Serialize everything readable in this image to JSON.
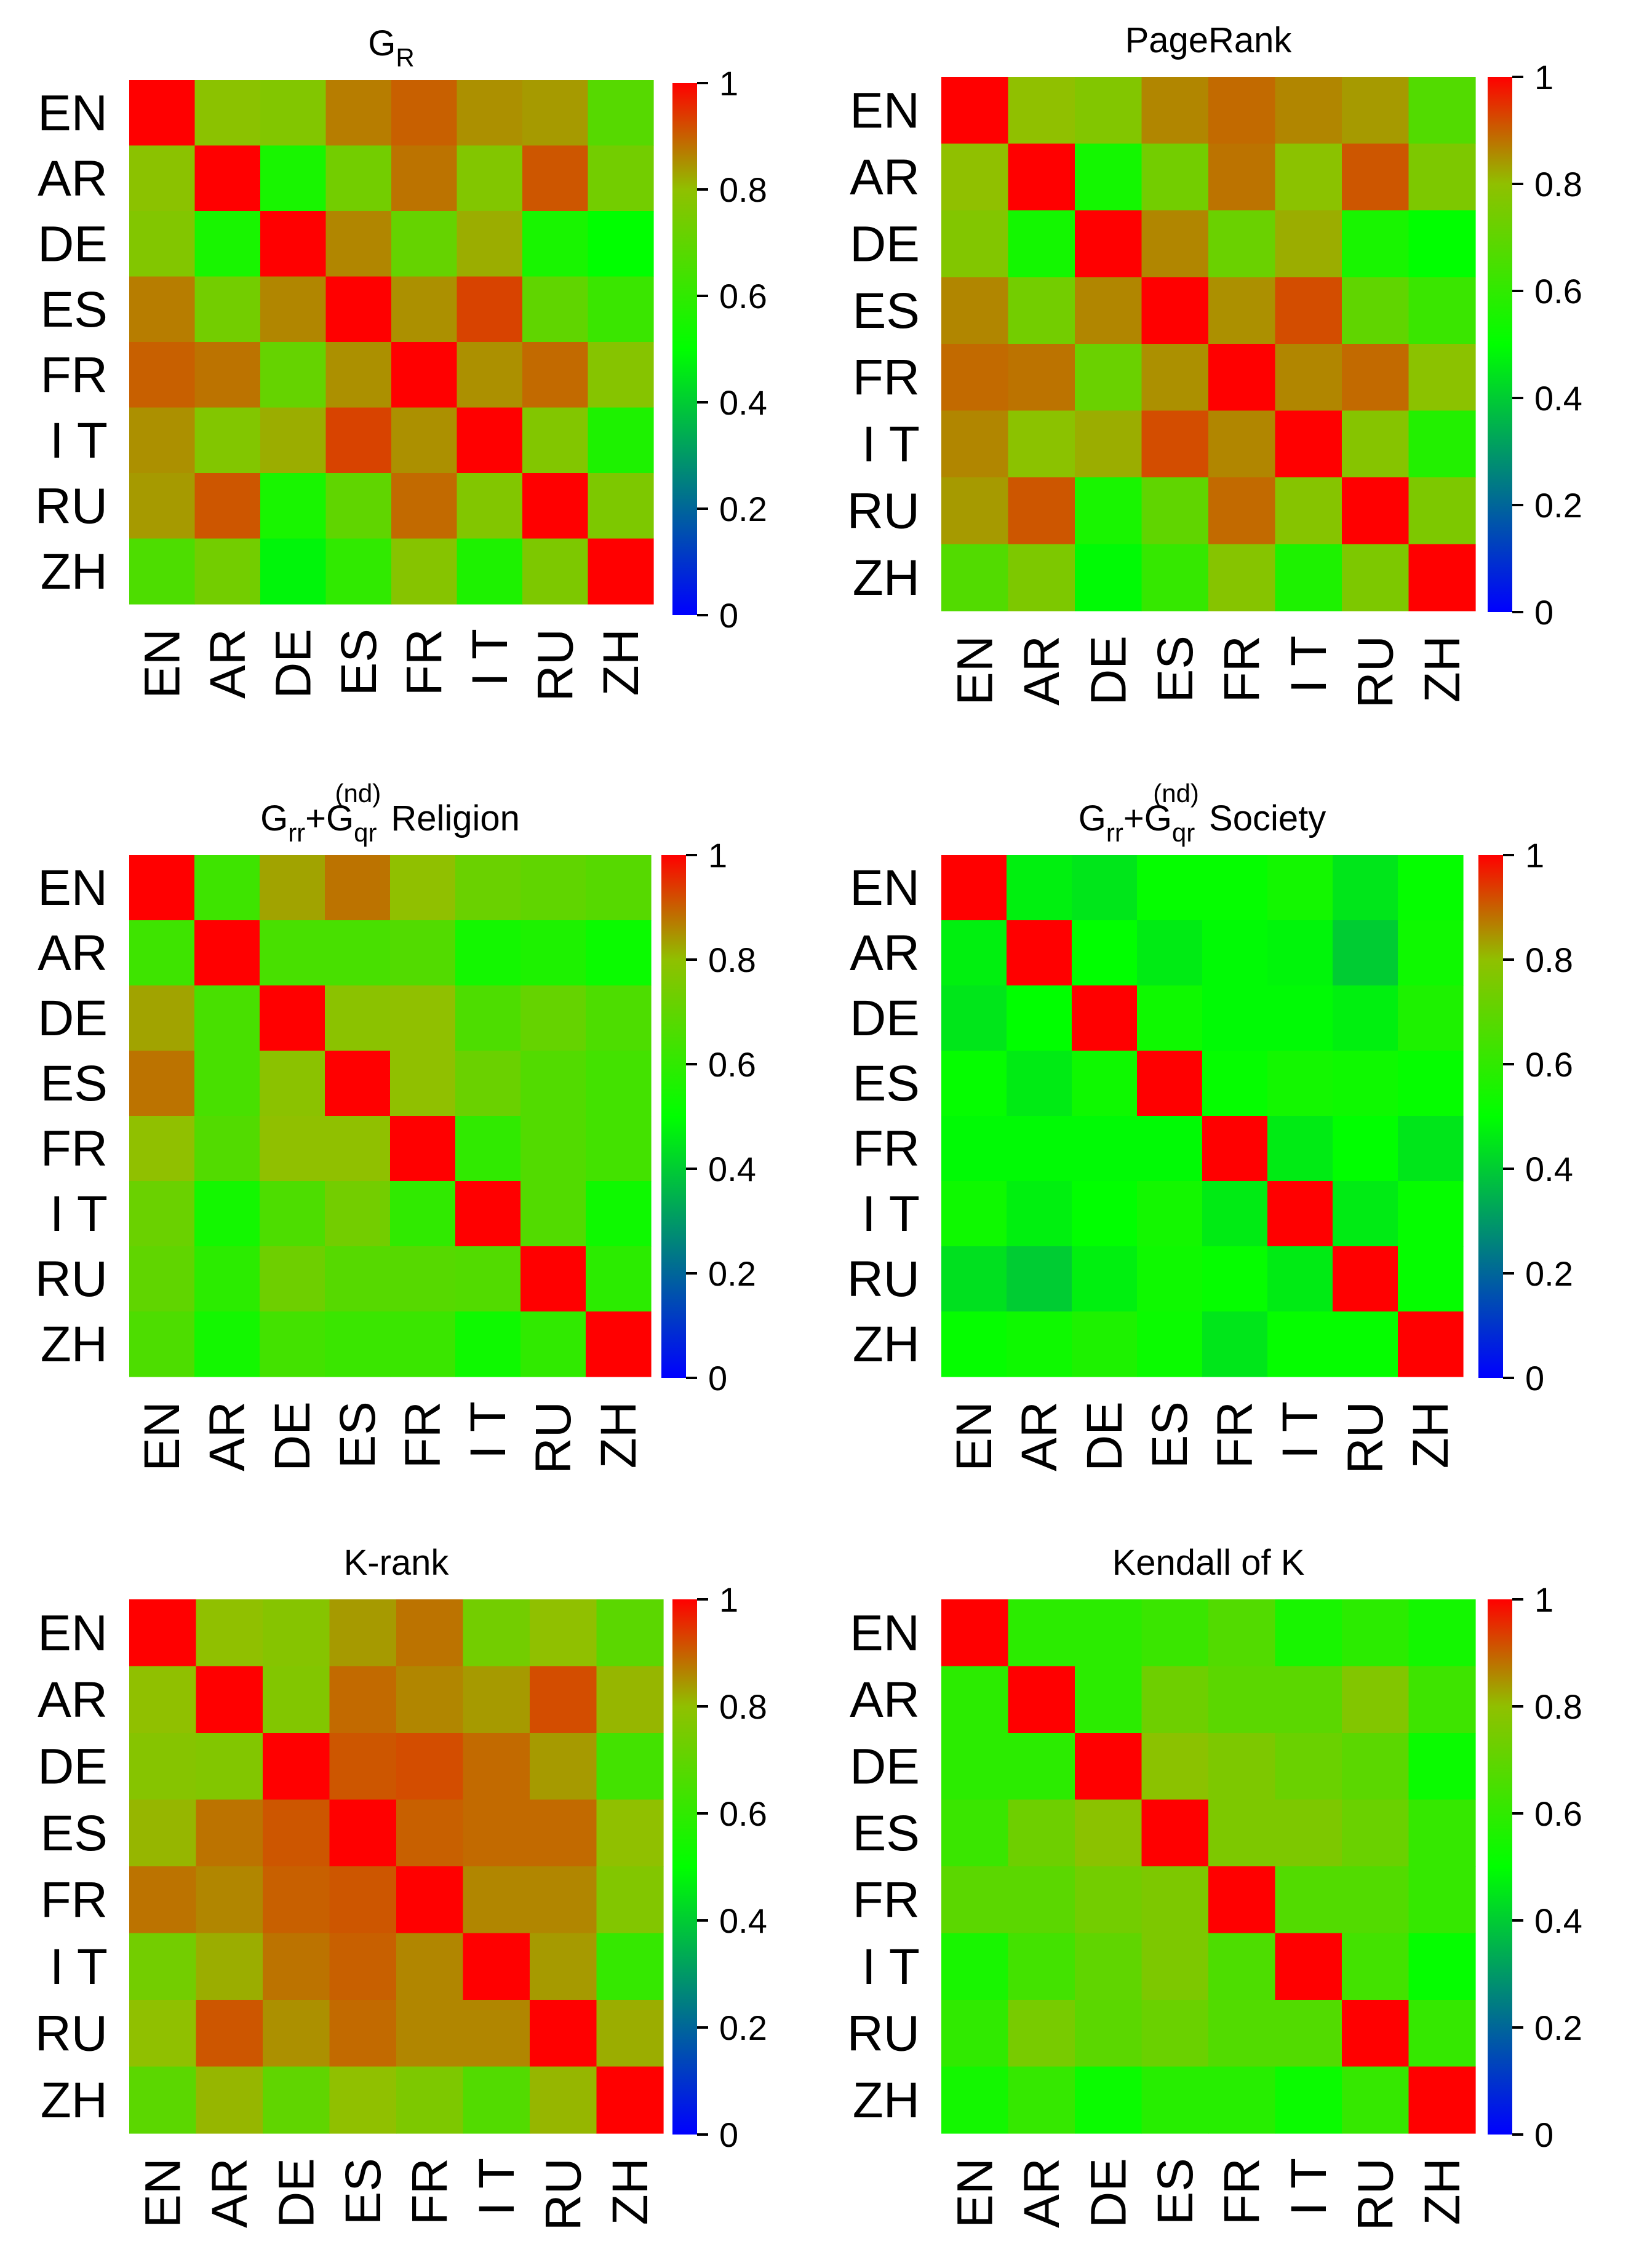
{
  "colorscale": {
    "low": "#0000ff",
    "mid_low": "#00ff00",
    "mid_high": "#90c000",
    "high": "#ff0000"
  },
  "chart_data": [
    {
      "type": "heatmap",
      "title_parts": [
        {
          "t": "G",
          "s": ""
        },
        {
          "t": "R",
          "s": "sub"
        }
      ],
      "labels": [
        "EN",
        "AR",
        "DE",
        "ES",
        "FR",
        "I T",
        "RU",
        "ZH"
      ],
      "colorbar": {
        "ticks": [
          "0",
          "0.2",
          "0.4",
          "0.6",
          "0.8",
          "1"
        ],
        "range": [
          0,
          1
        ]
      },
      "values": [
        [
          1.0,
          0.79,
          0.77,
          0.87,
          0.9,
          0.85,
          0.84,
          0.68
        ],
        [
          0.79,
          1.0,
          0.55,
          0.74,
          0.88,
          0.77,
          0.91,
          0.74
        ],
        [
          0.77,
          0.55,
          1.0,
          0.86,
          0.71,
          0.82,
          0.55,
          0.5
        ],
        [
          0.87,
          0.74,
          0.86,
          1.0,
          0.85,
          0.93,
          0.7,
          0.62
        ],
        [
          0.9,
          0.88,
          0.71,
          0.85,
          1.0,
          0.85,
          0.89,
          0.78
        ],
        [
          0.85,
          0.77,
          0.82,
          0.93,
          0.85,
          1.0,
          0.77,
          0.56
        ],
        [
          0.84,
          0.91,
          0.55,
          0.7,
          0.89,
          0.77,
          1.0,
          0.76
        ],
        [
          0.66,
          0.74,
          0.48,
          0.6,
          0.78,
          0.56,
          0.76,
          1.0
        ]
      ]
    },
    {
      "type": "heatmap",
      "title_parts": [
        {
          "t": "PageRank",
          "s": ""
        }
      ],
      "labels": [
        "EN",
        "AR",
        "DE",
        "ES",
        "FR",
        "I T",
        "RU",
        "ZH"
      ],
      "colorbar": {
        "ticks": [
          "0",
          "0.2",
          "0.4",
          "0.6",
          "0.8",
          "1"
        ],
        "range": [
          0,
          1
        ]
      },
      "values": [
        [
          1.0,
          0.8,
          0.77,
          0.86,
          0.89,
          0.86,
          0.84,
          0.67
        ],
        [
          0.8,
          1.0,
          0.54,
          0.74,
          0.88,
          0.79,
          0.91,
          0.76
        ],
        [
          0.77,
          0.54,
          1.0,
          0.86,
          0.72,
          0.82,
          0.55,
          0.5
        ],
        [
          0.86,
          0.74,
          0.86,
          1.0,
          0.85,
          0.92,
          0.7,
          0.62
        ],
        [
          0.89,
          0.88,
          0.72,
          0.85,
          1.0,
          0.86,
          0.89,
          0.79
        ],
        [
          0.86,
          0.79,
          0.82,
          0.92,
          0.86,
          1.0,
          0.78,
          0.57
        ],
        [
          0.84,
          0.91,
          0.55,
          0.7,
          0.89,
          0.78,
          1.0,
          0.76
        ],
        [
          0.67,
          0.76,
          0.49,
          0.61,
          0.78,
          0.56,
          0.76,
          1.0
        ]
      ]
    },
    {
      "type": "heatmap",
      "title_parts": [
        {
          "t": "G",
          "s": ""
        },
        {
          "t": "rr",
          "s": "sub"
        },
        {
          "t": "+G",
          "s": ""
        },
        {
          "t": "qr",
          "s": "sub"
        },
        {
          "t": "(nd)",
          "s": "sup"
        },
        {
          "t": "  Religion",
          "s": ""
        }
      ],
      "labels": [
        "EN",
        "AR",
        "DE",
        "ES",
        "FR",
        "I T",
        "RU",
        "ZH"
      ],
      "colorbar": {
        "ticks": [
          "0",
          "0.2",
          "0.4",
          "0.6",
          "0.8",
          "1"
        ],
        "range": [
          0,
          1
        ]
      },
      "values": [
        [
          1.0,
          0.63,
          0.83,
          0.88,
          0.8,
          0.72,
          0.7,
          0.68
        ],
        [
          0.63,
          1.0,
          0.65,
          0.65,
          0.67,
          0.54,
          0.56,
          0.52
        ],
        [
          0.83,
          0.65,
          1.0,
          0.79,
          0.8,
          0.66,
          0.71,
          0.66
        ],
        [
          0.88,
          0.65,
          0.79,
          1.0,
          0.8,
          0.72,
          0.67,
          0.64
        ],
        [
          0.8,
          0.67,
          0.8,
          0.8,
          1.0,
          0.6,
          0.67,
          0.64
        ],
        [
          0.72,
          0.54,
          0.66,
          0.74,
          0.6,
          1.0,
          0.67,
          0.53
        ],
        [
          0.7,
          0.59,
          0.73,
          0.68,
          0.68,
          0.67,
          1.0,
          0.59
        ],
        [
          0.66,
          0.54,
          0.64,
          0.62,
          0.62,
          0.53,
          0.6,
          1.0
        ]
      ]
    },
    {
      "type": "heatmap",
      "title_parts": [
        {
          "t": "G",
          "s": ""
        },
        {
          "t": "rr",
          "s": "sub"
        },
        {
          "t": "+G",
          "s": ""
        },
        {
          "t": "qr",
          "s": "sub"
        },
        {
          "t": "(nd)",
          "s": "sup"
        },
        {
          "t": "  Society",
          "s": ""
        }
      ],
      "labels": [
        "EN",
        "AR",
        "DE",
        "ES",
        "FR",
        "I T",
        "RU",
        "ZH"
      ],
      "colorbar": {
        "ticks": [
          "0",
          "0.2",
          "0.4",
          "0.6",
          "0.8",
          "1"
        ],
        "range": [
          0,
          1
        ]
      },
      "values": [
        [
          1.0,
          0.47,
          0.45,
          0.51,
          0.51,
          0.54,
          0.45,
          0.51
        ],
        [
          0.47,
          1.0,
          0.5,
          0.46,
          0.49,
          0.48,
          0.4,
          0.53
        ],
        [
          0.45,
          0.5,
          1.0,
          0.53,
          0.49,
          0.49,
          0.47,
          0.56
        ],
        [
          0.51,
          0.46,
          0.53,
          1.0,
          0.51,
          0.54,
          0.53,
          0.51
        ],
        [
          0.49,
          0.49,
          0.49,
          0.49,
          1.0,
          0.46,
          0.5,
          0.45
        ],
        [
          0.53,
          0.47,
          0.5,
          0.54,
          0.46,
          1.0,
          0.46,
          0.51
        ],
        [
          0.44,
          0.4,
          0.47,
          0.53,
          0.51,
          0.46,
          1.0,
          0.51
        ],
        [
          0.51,
          0.53,
          0.56,
          0.52,
          0.45,
          0.51,
          0.51,
          1.0
        ]
      ]
    },
    {
      "type": "heatmap",
      "title_parts": [
        {
          "t": "K-rank",
          "s": ""
        }
      ],
      "labels": [
        "EN",
        "AR",
        "DE",
        "ES",
        "FR",
        "I T",
        "RU",
        "ZH"
      ],
      "colorbar": {
        "ticks": [
          "0",
          "0.2",
          "0.4",
          "0.6",
          "0.8",
          "1"
        ],
        "range": [
          0,
          1
        ]
      },
      "values": [
        [
          1.0,
          0.8,
          0.78,
          0.84,
          0.88,
          0.74,
          0.8,
          0.69
        ],
        [
          0.8,
          1.0,
          0.77,
          0.89,
          0.86,
          0.84,
          0.92,
          0.81
        ],
        [
          0.78,
          0.77,
          1.0,
          0.91,
          0.92,
          0.89,
          0.84,
          0.64
        ],
        [
          0.81,
          0.88,
          0.91,
          1.0,
          0.9,
          0.89,
          0.89,
          0.8
        ],
        [
          0.88,
          0.86,
          0.9,
          0.91,
          1.0,
          0.86,
          0.86,
          0.77
        ],
        [
          0.74,
          0.82,
          0.88,
          0.9,
          0.86,
          1.0,
          0.84,
          0.61
        ],
        [
          0.8,
          0.91,
          0.85,
          0.89,
          0.86,
          0.86,
          1.0,
          0.82
        ],
        [
          0.69,
          0.81,
          0.7,
          0.8,
          0.76,
          0.67,
          0.81,
          1.0
        ]
      ]
    },
    {
      "type": "heatmap",
      "title_parts": [
        {
          "t": "Kendall of K",
          "s": ""
        }
      ],
      "labels": [
        "EN",
        "AR",
        "DE",
        "ES",
        "FR",
        "I T",
        "RU",
        "ZH"
      ],
      "colorbar": {
        "ticks": [
          "0",
          "0.2",
          "0.4",
          "0.6",
          "0.8",
          "1"
        ],
        "range": [
          0,
          1
        ]
      },
      "values": [
        [
          1.0,
          0.59,
          0.59,
          0.62,
          0.67,
          0.55,
          0.59,
          0.54
        ],
        [
          0.59,
          1.0,
          0.59,
          0.73,
          0.69,
          0.69,
          0.77,
          0.63
        ],
        [
          0.59,
          0.59,
          1.0,
          0.79,
          0.76,
          0.72,
          0.69,
          0.52
        ],
        [
          0.62,
          0.73,
          0.79,
          1.0,
          0.76,
          0.76,
          0.72,
          0.61
        ],
        [
          0.69,
          0.69,
          0.74,
          0.76,
          1.0,
          0.67,
          0.67,
          0.61
        ],
        [
          0.55,
          0.64,
          0.7,
          0.76,
          0.66,
          1.0,
          0.64,
          0.51
        ],
        [
          0.6,
          0.75,
          0.69,
          0.72,
          0.67,
          0.67,
          1.0,
          0.61
        ],
        [
          0.54,
          0.61,
          0.52,
          0.58,
          0.58,
          0.52,
          0.61,
          1.0
        ]
      ]
    }
  ]
}
